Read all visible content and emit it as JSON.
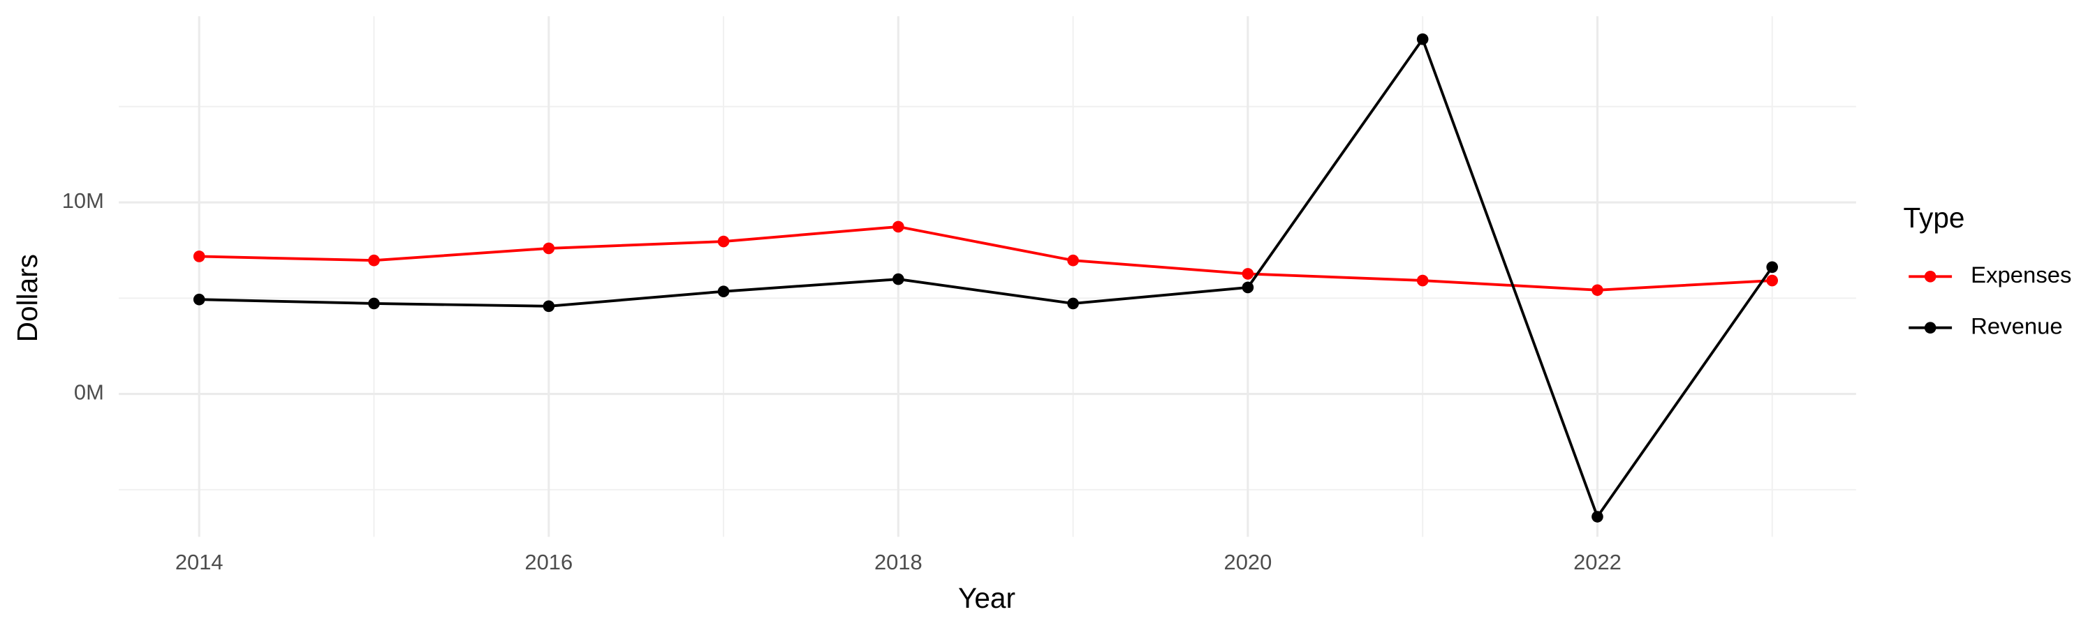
{
  "chart_data": {
    "type": "line",
    "x_label": "Year",
    "y_label": "Dollars",
    "legend_title": "Type",
    "x": [
      2014,
      2015,
      2016,
      2017,
      2018,
      2019,
      2020,
      2021,
      2022,
      2023
    ],
    "series": [
      {
        "name": "Expenses",
        "color": "#ff0000",
        "values": [
          7180000,
          6970000,
          7600000,
          7960000,
          8730000,
          6970000,
          6270000,
          5920000,
          5420000,
          5920000
        ]
      },
      {
        "name": "Revenue",
        "color": "#000000",
        "values": [
          4930000,
          4720000,
          4580000,
          5350000,
          5990000,
          4720000,
          5560000,
          18520000,
          -6410000,
          6620000
        ]
      }
    ],
    "xlim": [
      2013.54,
      2023.48
    ],
    "xticks": [
      2014,
      2016,
      2018,
      2020,
      2022
    ],
    "ylim": [
      -7460000,
      19720000
    ],
    "yticks": [
      {
        "value": 0,
        "label": "0M"
      },
      {
        "value": 10000000,
        "label": "10M"
      }
    ],
    "grid": true,
    "legend_position": "right"
  }
}
